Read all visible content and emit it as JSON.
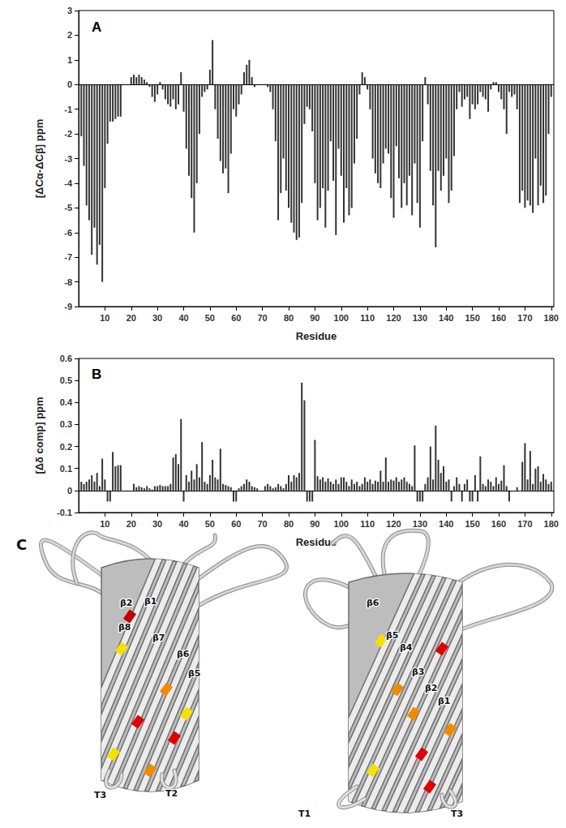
{
  "chart_data": [
    {
      "type": "bar",
      "title": "A",
      "x_label": "Residue",
      "y_label": "[ΔCα-ΔCβ] ppm",
      "color": "#333333",
      "grid": false,
      "x": [
        1,
        2,
        3,
        4,
        5,
        6,
        7,
        8,
        9,
        10,
        11,
        12,
        13,
        14,
        15,
        16,
        17,
        18,
        19,
        20,
        21,
        22,
        23,
        24,
        25,
        26,
        27,
        28,
        29,
        30,
        31,
        32,
        33,
        34,
        35,
        36,
        37,
        38,
        39,
        40,
        41,
        42,
        43,
        44,
        45,
        46,
        47,
        48,
        49,
        50,
        51,
        52,
        53,
        54,
        55,
        56,
        57,
        58,
        59,
        60,
        61,
        62,
        63,
        64,
        65,
        66,
        67,
        68,
        69,
        70,
        71,
        72,
        73,
        74,
        75,
        76,
        77,
        78,
        79,
        80,
        81,
        82,
        83,
        84,
        85,
        86,
        87,
        88,
        89,
        90,
        91,
        92,
        93,
        94,
        95,
        96,
        97,
        98,
        99,
        100,
        101,
        102,
        103,
        104,
        105,
        106,
        107,
        108,
        109,
        110,
        111,
        112,
        113,
        114,
        115,
        116,
        117,
        118,
        119,
        120,
        121,
        122,
        123,
        124,
        125,
        126,
        127,
        128,
        129,
        130,
        131,
        132,
        133,
        134,
        135,
        136,
        137,
        138,
        139,
        140,
        141,
        142,
        143,
        144,
        145,
        146,
        147,
        148,
        149,
        150,
        151,
        152,
        153,
        154,
        155,
        156,
        157,
        158,
        159,
        160,
        161,
        162,
        163,
        164,
        165,
        166,
        167,
        168,
        169,
        170,
        171,
        172,
        173,
        174,
        175,
        176,
        177,
        178,
        179,
        180
      ],
      "values": [
        -2.1,
        -3.3,
        -4.9,
        -5.5,
        -6.9,
        -5.8,
        -7.3,
        -6.5,
        -8.0,
        -4.2,
        -2.4,
        -1.5,
        -1.5,
        -1.4,
        -1.3,
        -1.3,
        null,
        null,
        null,
        0.3,
        0.4,
        0.3,
        0.4,
        0.3,
        0.2,
        0.1,
        -0.1,
        -0.5,
        -0.7,
        -0.4,
        0.1,
        -0.2,
        -0.6,
        -0.8,
        -0.9,
        -0.6,
        -1.0,
        -0.8,
        0.5,
        -1.1,
        -2.6,
        -3.7,
        -4.6,
        -6.0,
        -4.0,
        -2.0,
        -0.5,
        -0.3,
        -0.2,
        0.6,
        1.8,
        -1.0,
        -2.2,
        -3.1,
        -3.6,
        -3.4,
        -4.4,
        -2.8,
        -1.0,
        -1.3,
        -0.8,
        -0.4,
        0.5,
        0.8,
        1.0,
        0.3,
        -0.1,
        null,
        null,
        null,
        null,
        -0.1,
        -0.3,
        -1.0,
        -2.3,
        -5.5,
        -4.4,
        -3.0,
        -4.3,
        -5.0,
        -5.6,
        -6.0,
        -6.3,
        -6.2,
        -4.8,
        -1.6,
        -0.9,
        -1.0,
        -1.9,
        -4.0,
        -5.5,
        -5.0,
        -4.2,
        -5.8,
        -4.3,
        -2.3,
        -3.9,
        -6.1,
        -2.6,
        -3.7,
        -5.6,
        -4.2,
        -5.3,
        -5.0,
        -3.2,
        -2.2,
        -0.4,
        0.5,
        0.3,
        -0.2,
        -1.0,
        -3.0,
        -3.6,
        -4.0,
        -4.2,
        -3.2,
        -2.6,
        -2.8,
        -4.6,
        -5.4,
        -2.5,
        -3.8,
        -5.0,
        -4.0,
        -4.9,
        -3.7,
        -5.3,
        -3.2,
        -4.8,
        -5.8,
        -2.3,
        0.3,
        -0.8,
        -3.5,
        -4.9,
        -6.6,
        -3.5,
        -4.3,
        -3.7,
        -3.0,
        -4.8,
        -4.3,
        -2.9,
        -1.0,
        -0.3,
        -0.9,
        -0.6,
        -0.5,
        -1.4,
        -0.8,
        -1.0,
        -0.8,
        -0.3,
        -0.5,
        -0.6,
        -1.1,
        -0.2,
        0.1,
        0.1,
        -0.3,
        -0.6,
        -1.0,
        -2.0,
        -0.3,
        -0.5,
        -0.4,
        -1.0,
        -4.8,
        -4.3,
        -5.0,
        -4.7,
        -4.9,
        -5.2,
        -3.0,
        -4.9,
        -4.1,
        -4.8,
        -4.5,
        -2.0,
        -0.5
      ],
      "xlim": [
        0,
        181
      ],
      "xticks": [
        10,
        20,
        30,
        40,
        50,
        60,
        70,
        80,
        90,
        100,
        110,
        120,
        130,
        140,
        150,
        160,
        170,
        180
      ],
      "ylim": [
        -9,
        3
      ],
      "yticks": [
        -9,
        -8,
        -7,
        -6,
        -5,
        -4,
        -3,
        -2,
        -1,
        0,
        1,
        2,
        3
      ]
    },
    {
      "type": "bar",
      "title": "B",
      "x_label": "Residue",
      "y_label": "[Δδ comp] ppm",
      "color": "#333333",
      "grid": false,
      "x": [
        1,
        2,
        3,
        4,
        5,
        6,
        7,
        8,
        9,
        10,
        11,
        12,
        13,
        14,
        15,
        16,
        17,
        18,
        19,
        20,
        21,
        22,
        23,
        24,
        25,
        26,
        27,
        28,
        29,
        30,
        31,
        32,
        33,
        34,
        35,
        36,
        37,
        38,
        39,
        40,
        41,
        42,
        43,
        44,
        45,
        46,
        47,
        48,
        49,
        50,
        51,
        52,
        53,
        54,
        55,
        56,
        57,
        58,
        59,
        60,
        61,
        62,
        63,
        64,
        65,
        66,
        67,
        68,
        69,
        70,
        71,
        72,
        73,
        74,
        75,
        76,
        77,
        78,
        79,
        80,
        81,
        82,
        83,
        84,
        85,
        86,
        87,
        88,
        89,
        90,
        91,
        92,
        93,
        94,
        95,
        96,
        97,
        98,
        99,
        100,
        101,
        102,
        103,
        104,
        105,
        106,
        107,
        108,
        109,
        110,
        111,
        112,
        113,
        114,
        115,
        116,
        117,
        118,
        119,
        120,
        121,
        122,
        123,
        124,
        125,
        126,
        127,
        128,
        129,
        130,
        131,
        132,
        133,
        134,
        135,
        136,
        137,
        138,
        139,
        140,
        141,
        142,
        143,
        144,
        145,
        146,
        147,
        148,
        149,
        150,
        151,
        152,
        153,
        154,
        155,
        156,
        157,
        158,
        159,
        160,
        161,
        162,
        163,
        164,
        165,
        166,
        167,
        168,
        169,
        170,
        171,
        172,
        173,
        174,
        175,
        176,
        177,
        178,
        179,
        180
      ],
      "values": [
        0.04,
        0.03,
        0.04,
        0.05,
        0.07,
        0.04,
        0.08,
        0.02,
        0.145,
        0.05,
        -0.05,
        -0.05,
        0.175,
        0.11,
        0.115,
        0.115,
        null,
        null,
        null,
        null,
        0.03,
        0.015,
        0.02,
        0.015,
        0.01,
        0.02,
        0.01,
        0.005,
        0.02,
        0.02,
        0.025,
        0.02,
        0.02,
        0.02,
        0.03,
        0.15,
        0.165,
        0.12,
        0.325,
        -0.05,
        0.07,
        0.04,
        0.09,
        0.05,
        0.12,
        0.06,
        0.22,
        0.04,
        0.03,
        0.07,
        0.14,
        0.06,
        0.05,
        0.19,
        0.03,
        0.025,
        0.02,
        0.015,
        -0.05,
        -0.05,
        0.01,
        0.02,
        0.03,
        0.05,
        0.04,
        0.02,
        0.015,
        0.01,
        null,
        null,
        0.02,
        0.03,
        0.02,
        0.01,
        0.015,
        0.03,
        0.02,
        0.01,
        0.03,
        0.07,
        0.04,
        0.07,
        0.06,
        0.08,
        0.49,
        0.41,
        -0.05,
        -0.05,
        -0.05,
        0.23,
        0.065,
        0.05,
        0.06,
        0.04,
        0.055,
        0.04,
        0.03,
        0.05,
        0.03,
        0.06,
        0.06,
        0.04,
        0.02,
        0.05,
        0.03,
        0.04,
        0.02,
        0.03,
        0.06,
        0.04,
        0.05,
        0.03,
        0.045,
        0.04,
        0.09,
        0.04,
        0.15,
        0.04,
        0.05,
        0.045,
        0.06,
        0.04,
        0.05,
        0.06,
        0.04,
        0.03,
        0.02,
        0.205,
        -0.05,
        -0.05,
        -0.05,
        0.03,
        0.06,
        0.2,
        0.05,
        0.295,
        0.14,
        0.08,
        0.11,
        0.04,
        0.05,
        -0.05,
        0.02,
        0.06,
        0.03,
        -0.05,
        0.03,
        0.05,
        -0.05,
        -0.05,
        0.07,
        -0.05,
        0.155,
        0.03,
        0.02,
        0.05,
        0.04,
        0.02,
        0.06,
        0.03,
        0.045,
        0.115,
        0.02,
        -0.05,
        null,
        null,
        0.015,
        null,
        0.13,
        0.215,
        0.05,
        0.18,
        0.03,
        0.1,
        0.11,
        0.04,
        0.075,
        0.05,
        0.03,
        0.04
      ],
      "xlim": [
        0,
        181
      ],
      "xticks": [
        10,
        20,
        30,
        40,
        50,
        60,
        70,
        80,
        90,
        100,
        110,
        120,
        130,
        140,
        150,
        160,
        170,
        180
      ],
      "ylim": [
        -0.1,
        0.6
      ],
      "yticks": [
        -0.1,
        0,
        0.1,
        0.2,
        0.3,
        0.4,
        0.5,
        0.6
      ]
    }
  ],
  "panel_c": {
    "title": "C",
    "views": [
      {
        "strands": [
          "β2",
          "β1",
          "β8",
          "β7",
          "β6",
          "β5"
        ],
        "turns": [
          "T3",
          "T2"
        ]
      },
      {
        "strands": [
          "β6",
          "β5",
          "β4",
          "β3",
          "β2",
          "β1"
        ],
        "turns": [
          "T1",
          "T3"
        ]
      }
    ]
  }
}
